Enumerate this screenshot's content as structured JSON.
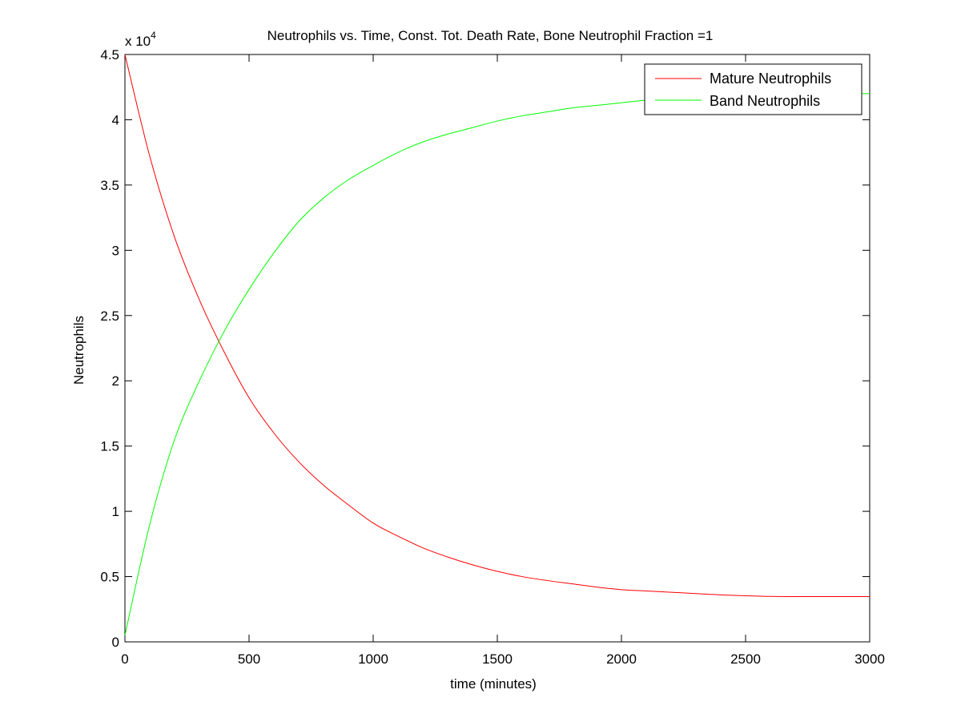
{
  "chart_data": {
    "type": "line",
    "title": "Neutrophils vs. Time, Const. Tot. Death Rate, Bone Neutrophil Fraction =1",
    "xlabel": "time (minutes)",
    "ylabel": "Neutrophils",
    "y_exponent_label": {
      "base": "x 10",
      "exponent": "4"
    },
    "xlim": [
      0,
      3000
    ],
    "ylim": [
      0,
      4.5
    ],
    "x_ticks": [
      0,
      500,
      1000,
      1500,
      2000,
      2500,
      3000
    ],
    "x_tick_labels": [
      "0",
      "500",
      "1000",
      "1500",
      "2000",
      "2500",
      "3000"
    ],
    "y_ticks": [
      0,
      0.5,
      1,
      1.5,
      2,
      2.5,
      3,
      3.5,
      4,
      4.5
    ],
    "y_tick_labels": [
      "0",
      "0.5",
      "1",
      "1.5",
      "2",
      "2.5",
      "3",
      "3.5",
      "4",
      "4.5"
    ],
    "grid": false,
    "legend_position": "top-right",
    "x": [
      0,
      100,
      200,
      300,
      400,
      500,
      600,
      700,
      800,
      900,
      1000,
      1100,
      1200,
      1300,
      1400,
      1500,
      1600,
      1700,
      1800,
      1900,
      2000,
      2100,
      2200,
      2300,
      2400,
      2500,
      2600,
      2700,
      2800,
      2900,
      3000
    ],
    "series": [
      {
        "name": "Mature Neutrophils",
        "color": "#ff0000",
        "values": [
          4.5,
          3.72,
          3.1,
          2.62,
          2.22,
          1.87,
          1.6,
          1.38,
          1.2,
          1.05,
          0.91,
          0.81,
          0.72,
          0.65,
          0.59,
          0.54,
          0.5,
          0.47,
          0.445,
          0.42,
          0.4,
          0.39,
          0.38,
          0.37,
          0.36,
          0.353,
          0.348,
          0.347,
          0.347,
          0.347,
          0.347
        ]
      },
      {
        "name": "Band Neutrophils",
        "color": "#00ff00",
        "values": [
          0.05,
          0.9,
          1.55,
          2.0,
          2.38,
          2.7,
          2.98,
          3.22,
          3.4,
          3.54,
          3.65,
          3.75,
          3.83,
          3.89,
          3.94,
          3.99,
          4.03,
          4.06,
          4.09,
          4.11,
          4.13,
          4.15,
          4.16,
          4.17,
          4.18,
          4.185,
          4.19,
          4.195,
          4.198,
          4.2,
          4.2
        ]
      }
    ]
  }
}
